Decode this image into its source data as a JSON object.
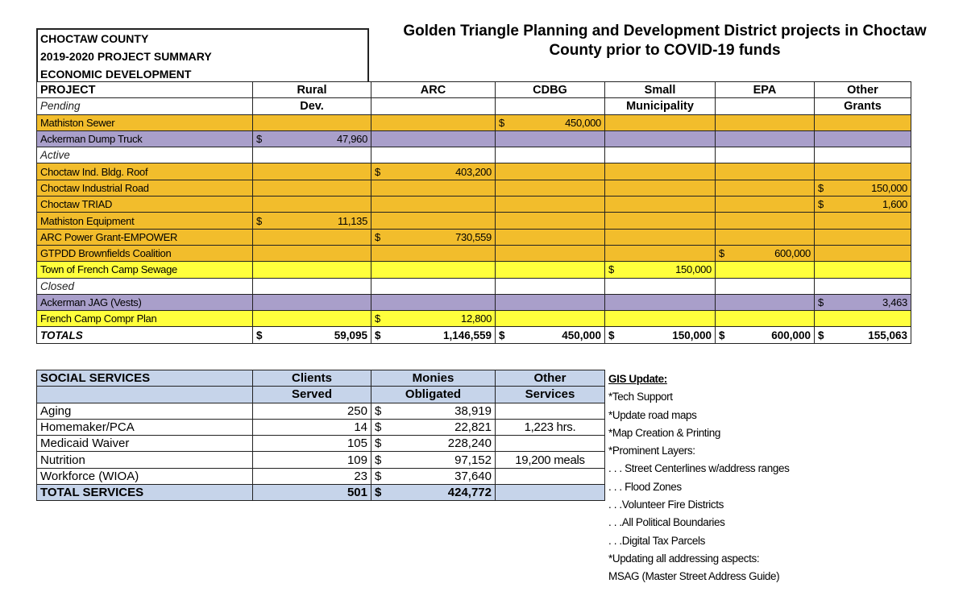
{
  "title": "Golden Triangle Planning and Development District projects in Choctaw County prior to COVID-19 funds",
  "header_box": [
    "CHOCTAW COUNTY",
    "2019-2020 PROJECT SUMMARY",
    "ECONOMIC DEVELOPMENT"
  ],
  "currency": "$",
  "project_table": {
    "header_row1": [
      "PROJECT",
      "Rural",
      "ARC",
      "CDBG",
      "Small",
      "EPA",
      "Other"
    ],
    "header_row2": [
      "Pending",
      "Dev.",
      "",
      "",
      "Municipality",
      "",
      "Grants"
    ],
    "colors": {
      "orange": "#f2bd2c",
      "purple": "#a99fca",
      "yellow": "#ffff3c",
      "blue": "#c6d4ea"
    },
    "rows": [
      {
        "label": "Mathiston Sewer",
        "style": "orange",
        "values": [
          "",
          "",
          "450,000",
          "",
          "",
          ""
        ]
      },
      {
        "label": "Ackerman Dump Truck",
        "style": "purple",
        "values": [
          "47,960",
          "",
          "",
          "",
          "",
          ""
        ]
      },
      {
        "label": "Active",
        "style": "section",
        "values": [
          "",
          "",
          "",
          "",
          "",
          ""
        ]
      },
      {
        "label": "Choctaw Ind. Bldg. Roof",
        "style": "orange",
        "values": [
          "",
          "403,200",
          "",
          "",
          "",
          ""
        ]
      },
      {
        "label": "Choctaw Industrial Road",
        "style": "orange",
        "values": [
          "",
          "",
          "",
          "",
          "",
          "150,000"
        ]
      },
      {
        "label": "Choctaw TRIAD",
        "style": "orange",
        "values": [
          "",
          "",
          "",
          "",
          "",
          "1,600"
        ]
      },
      {
        "label": "Mathiston Equipment",
        "style": "orange",
        "values": [
          "11,135",
          "",
          "",
          "",
          "",
          ""
        ]
      },
      {
        "label": "ARC Power Grant-EMPOWER",
        "style": "orange",
        "values": [
          "",
          "730,559",
          "",
          "",
          "",
          ""
        ]
      },
      {
        "label": "GTPDD Brownfields Coalition",
        "style": "orange",
        "values": [
          "",
          "",
          "",
          "",
          "600,000",
          ""
        ]
      },
      {
        "label": "Town of French  Camp Sewage",
        "style": "yellow",
        "values": [
          "",
          "",
          "",
          "150,000",
          "",
          ""
        ]
      },
      {
        "label": "Closed",
        "style": "section",
        "values": [
          "",
          "",
          "",
          "",
          "",
          ""
        ]
      },
      {
        "label": "Ackerman JAG (Vests)",
        "style": "purple",
        "values": [
          "",
          "",
          "",
          "",
          "",
          "3,463"
        ]
      },
      {
        "label": "French Camp Compr Plan",
        "style": "yellow",
        "values": [
          "",
          "12,800",
          "",
          "",
          "",
          ""
        ]
      },
      {
        "label": "TOTALS",
        "style": "tot",
        "values": [
          "59,095",
          "1,146,559",
          "450,000",
          "150,000",
          "600,000",
          "155,063"
        ]
      }
    ]
  },
  "social_services": {
    "header_row1": [
      "SOCIAL SERVICES",
      "Clients",
      "Monies",
      "Other"
    ],
    "header_row2": [
      "",
      "Served",
      "Obligated",
      "Services"
    ],
    "rows": [
      {
        "label": "Aging",
        "clients": "250",
        "monies": "38,919",
        "other": ""
      },
      {
        "label": "Homemaker/PCA",
        "clients": "14",
        "monies": "22,821",
        "other": "1,223 hrs."
      },
      {
        "label": "Medicaid Waiver",
        "clients": "105",
        "monies": "228,240",
        "other": ""
      },
      {
        "label": "Nutrition",
        "clients": "109",
        "monies": "97,152",
        "other": "19,200 meals"
      },
      {
        "label": "Workforce (WIOA)",
        "clients": "23",
        "monies": "37,640",
        "other": ""
      }
    ],
    "total": {
      "label": "TOTAL SERVICES",
      "clients": "501",
      "monies": "424,772",
      "other": ""
    }
  },
  "gis_update": [
    "GIS Update:",
    "*Tech Support",
    "*Update road maps",
    "*Map Creation & Printing",
    "*Prominent Layers:",
    ". . . Street Centerlines w/address ranges",
    ". . . Flood Zones",
    ". . .Volunteer Fire Districts",
    ". . .All Political Boundaries",
    ". . .Digital Tax Parcels",
    "*Updating all addressing aspects:",
    "MSAG (Master Street Address Guide)"
  ]
}
